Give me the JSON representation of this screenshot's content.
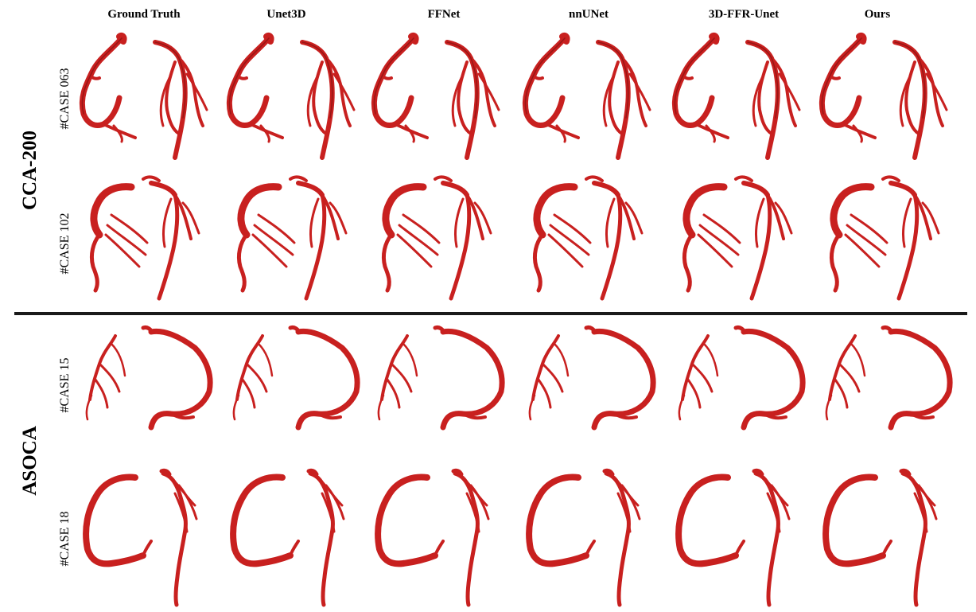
{
  "methods": [
    "Ground Truth",
    "Unet3D",
    "FFNet",
    "nnUNet",
    "3D-FFR-Unet",
    "Ours"
  ],
  "datasets": [
    {
      "name": "CCA-200",
      "cases": [
        "#CASE 063",
        "#CASE 102"
      ]
    },
    {
      "name": "ASOCA",
      "cases": [
        "#CASE 15",
        "#CASE 18"
      ]
    }
  ],
  "colors": {
    "vessel": "#c8201f",
    "vessel_dark": "#7a0f0f",
    "divider": "#1a1a1a"
  }
}
